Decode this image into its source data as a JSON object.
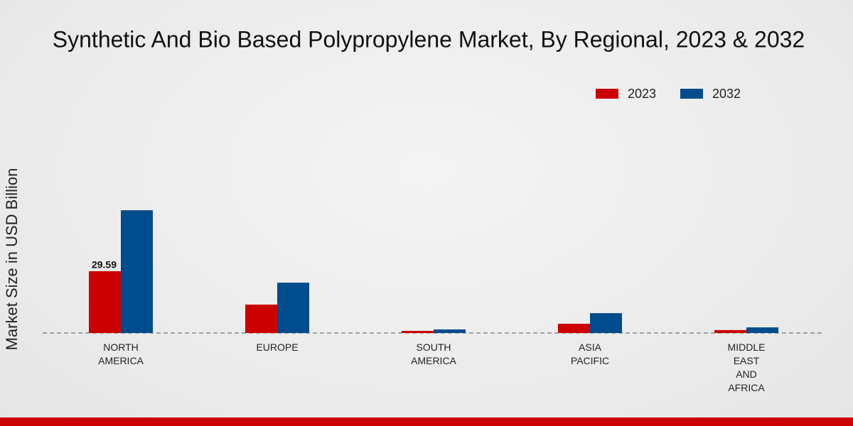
{
  "chart_data": {
    "type": "bar",
    "title": "Synthetic And Bio Based Polypropylene Market, By Regional, 2023 & 2032",
    "y_label": "Market Size in USD Billion",
    "categories": [
      "NORTH AMERICA",
      "EUROPE",
      "SOUTH AMERICA",
      "ASIA PACIFIC",
      "MIDDLE EAST AND AFRICA"
    ],
    "series": [
      {
        "name": "2023",
        "color": "#cc0000",
        "values": [
          29.59,
          13.6,
          1.0,
          4.4,
          1.4
        ],
        "value_labels": [
          "29.59",
          null,
          null,
          null,
          null
        ]
      },
      {
        "name": "2032",
        "color": "#004c8c",
        "values": [
          58.8,
          24.1,
          1.7,
          9.5,
          2.7
        ]
      }
    ]
  }
}
